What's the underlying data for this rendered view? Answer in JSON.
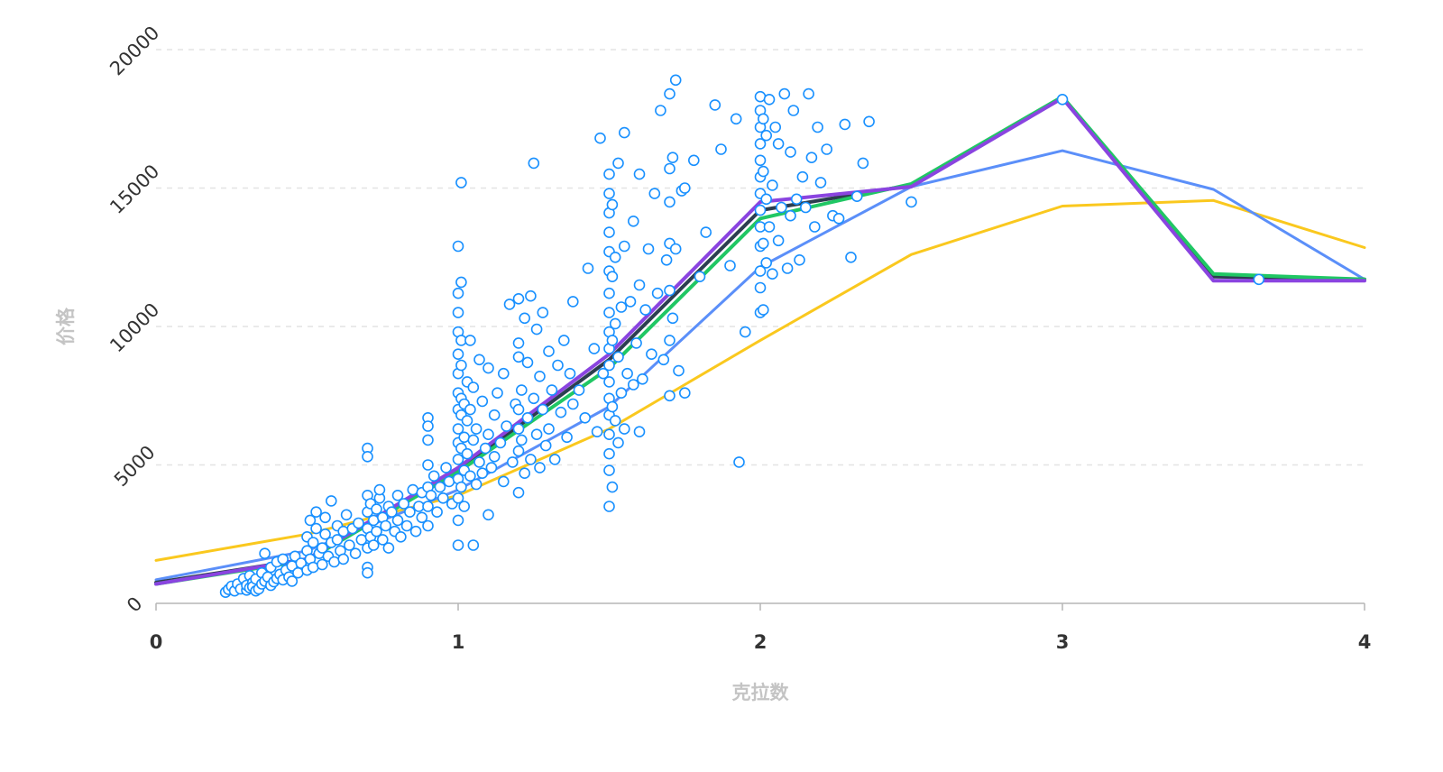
{
  "chart_data": {
    "type": "scatter",
    "title": "",
    "xlabel": "克拉数",
    "ylabel": "价格",
    "xlim": [
      0,
      4
    ],
    "ylim": [
      0,
      20000
    ],
    "x_ticks": [
      "0",
      "1",
      "2",
      "3",
      "4"
    ],
    "y_ticks": [
      "0",
      "5000",
      "10000",
      "15000",
      "20000"
    ],
    "grid": "horizontal dashed",
    "legend": "none",
    "colors": {
      "points": "#1890ff",
      "line_yellow": "#fac81e",
      "line_blue": "#5b8ff9",
      "line_dark": "#2c3e50",
      "line_green": "#20c764",
      "line_purple": "#8a44e0"
    },
    "series": [
      {
        "type": "line",
        "color": "#fac81e",
        "x": [
          0,
          0.5,
          1,
          1.5,
          2,
          2.5,
          3,
          3.5,
          4
        ],
        "y": [
          1550,
          2500,
          3900,
          6300,
          9500,
          12600,
          14350,
          14550,
          12850
        ]
      },
      {
        "type": "line",
        "color": "#5b8ff9",
        "x": [
          0,
          0.5,
          1,
          1.5,
          2,
          2.5,
          3,
          3.5,
          4
        ],
        "y": [
          850,
          1900,
          4100,
          7100,
          12150,
          15050,
          16350,
          14950,
          11700
        ]
      },
      {
        "type": "line",
        "color": "#2c3e50",
        "x": [
          0,
          0.5,
          1,
          1.5,
          2,
          2.5,
          3,
          3.5,
          4
        ],
        "y": [
          750,
          1600,
          4800,
          8800,
          14200,
          15100,
          18250,
          11800,
          11700
        ]
      },
      {
        "type": "line",
        "color": "#20c764",
        "x": [
          0,
          0.5,
          1,
          1.5,
          2,
          2.5,
          3,
          3.5,
          4
        ],
        "y": [
          700,
          1550,
          4750,
          8500,
          13900,
          15150,
          18300,
          11900,
          11700
        ]
      },
      {
        "type": "line",
        "color": "#8a44e0",
        "x": [
          0,
          0.5,
          1,
          1.5,
          2,
          2.5,
          3,
          3.5,
          4
        ],
        "y": [
          700,
          1600,
          4900,
          9000,
          14500,
          15050,
          18250,
          11650,
          11650
        ]
      }
    ],
    "points": [
      [
        0.23,
        400
      ],
      [
        0.24,
        500
      ],
      [
        0.25,
        620
      ],
      [
        0.26,
        450
      ],
      [
        0.27,
        700
      ],
      [
        0.28,
        520
      ],
      [
        0.29,
        900
      ],
      [
        0.3,
        480
      ],
      [
        0.3,
        650
      ],
      [
        0.31,
        560
      ],
      [
        0.31,
        1000
      ],
      [
        0.32,
        750
      ],
      [
        0.32,
        600
      ],
      [
        0.33,
        450
      ],
      [
        0.33,
        880
      ],
      [
        0.34,
        520
      ],
      [
        0.35,
        700
      ],
      [
        0.35,
        1100
      ],
      [
        0.36,
        800
      ],
      [
        0.36,
        1800
      ],
      [
        0.37,
        950
      ],
      [
        0.38,
        650
      ],
      [
        0.38,
        1300
      ],
      [
        0.39,
        780
      ],
      [
        0.4,
        900
      ],
      [
        0.4,
        1500
      ],
      [
        0.41,
        1050
      ],
      [
        0.42,
        850
      ],
      [
        0.42,
        1600
      ],
      [
        0.43,
        1200
      ],
      [
        0.44,
        950
      ],
      [
        0.45,
        1350
      ],
      [
        0.45,
        800
      ],
      [
        0.46,
        1700
      ],
      [
        0.47,
        1100
      ],
      [
        0.48,
        1450
      ],
      [
        0.5,
        1200
      ],
      [
        0.5,
        1900
      ],
      [
        0.5,
        2400
      ],
      [
        0.51,
        3000
      ],
      [
        0.51,
        1600
      ],
      [
        0.52,
        2200
      ],
      [
        0.52,
        1300
      ],
      [
        0.53,
        2700
      ],
      [
        0.53,
        3300
      ],
      [
        0.54,
        1800
      ],
      [
        0.55,
        2000
      ],
      [
        0.55,
        1400
      ],
      [
        0.56,
        2500
      ],
      [
        0.56,
        3100
      ],
      [
        0.57,
        1700
      ],
      [
        0.58,
        2200
      ],
      [
        0.58,
        3700
      ],
      [
        0.59,
        1500
      ],
      [
        0.6,
        2300
      ],
      [
        0.6,
        2800
      ],
      [
        0.61,
        1900
      ],
      [
        0.62,
        2600
      ],
      [
        0.62,
        1600
      ],
      [
        0.63,
        3200
      ],
      [
        0.64,
        2100
      ],
      [
        0.65,
        2700
      ],
      [
        0.66,
        1800
      ],
      [
        0.67,
        2900
      ],
      [
        0.68,
        2300
      ],
      [
        0.7,
        2000
      ],
      [
        0.7,
        2700
      ],
      [
        0.7,
        3300
      ],
      [
        0.7,
        3900
      ],
      [
        0.7,
        1300
      ],
      [
        0.7,
        1100
      ],
      [
        0.7,
        5600
      ],
      [
        0.7,
        5300
      ],
      [
        0.71,
        2400
      ],
      [
        0.71,
        3600
      ],
      [
        0.72,
        3000
      ],
      [
        0.72,
        2100
      ],
      [
        0.73,
        3400
      ],
      [
        0.73,
        2600
      ],
      [
        0.74,
        3800
      ],
      [
        0.74,
        4100
      ],
      [
        0.75,
        2300
      ],
      [
        0.75,
        3100
      ],
      [
        0.76,
        2800
      ],
      [
        0.77,
        3500
      ],
      [
        0.77,
        2000
      ],
      [
        0.78,
        3300
      ],
      [
        0.79,
        2600
      ],
      [
        0.8,
        3000
      ],
      [
        0.8,
        3900
      ],
      [
        0.81,
        2400
      ],
      [
        0.82,
        3600
      ],
      [
        0.83,
        2800
      ],
      [
        0.84,
        3300
      ],
      [
        0.85,
        4100
      ],
      [
        0.86,
        2600
      ],
      [
        0.87,
        3500
      ],
      [
        0.88,
        3100
      ],
      [
        0.88,
        4000
      ],
      [
        0.9,
        2800
      ],
      [
        0.9,
        3500
      ],
      [
        0.9,
        4200
      ],
      [
        0.9,
        5000
      ],
      [
        0.9,
        5900
      ],
      [
        0.9,
        6700
      ],
      [
        0.9,
        6400
      ],
      [
        0.91,
        3900
      ],
      [
        0.92,
        4600
      ],
      [
        0.93,
        3300
      ],
      [
        0.94,
        4200
      ],
      [
        0.95,
        3800
      ],
      [
        0.96,
        4900
      ],
      [
        0.97,
        4400
      ],
      [
        0.98,
        3600
      ],
      [
        1,
        2100
      ],
      [
        1,
        3000
      ],
      [
        1,
        3800
      ],
      [
        1,
        4500
      ],
      [
        1,
        5200
      ],
      [
        1,
        5800
      ],
      [
        1,
        6300
      ],
      [
        1,
        7000
      ],
      [
        1,
        7600
      ],
      [
        1,
        8300
      ],
      [
        1,
        9000
      ],
      [
        1,
        9800
      ],
      [
        1,
        10500
      ],
      [
        1,
        11200
      ],
      [
        1,
        12900
      ],
      [
        1.01,
        4200
      ],
      [
        1.01,
        5600
      ],
      [
        1.01,
        6800
      ],
      [
        1.01,
        7400
      ],
      [
        1.01,
        8600
      ],
      [
        1.01,
        9500
      ],
      [
        1.01,
        11600
      ],
      [
        1.01,
        15200
      ],
      [
        1.02,
        3500
      ],
      [
        1.02,
        4800
      ],
      [
        1.02,
        6000
      ],
      [
        1.02,
        7200
      ],
      [
        1.03,
        5400
      ],
      [
        1.03,
        6600
      ],
      [
        1.03,
        8000
      ],
      [
        1.04,
        4600
      ],
      [
        1.04,
        7000
      ],
      [
        1.04,
        9500
      ],
      [
        1.05,
        2100
      ],
      [
        1.05,
        5900
      ],
      [
        1.05,
        7800
      ],
      [
        1.06,
        4300
      ],
      [
        1.06,
        6300
      ],
      [
        1.07,
        5100
      ],
      [
        1.07,
        8800
      ],
      [
        1.08,
        4700
      ],
      [
        1.08,
        7300
      ],
      [
        1.09,
        5600
      ],
      [
        1.1,
        3200
      ],
      [
        1.1,
        6100
      ],
      [
        1.1,
        8500
      ],
      [
        1.11,
        4900
      ],
      [
        1.12,
        6800
      ],
      [
        1.12,
        5300
      ],
      [
        1.13,
        7600
      ],
      [
        1.14,
        5800
      ],
      [
        1.15,
        4400
      ],
      [
        1.15,
        8300
      ],
      [
        1.16,
        6400
      ],
      [
        1.17,
        10800
      ],
      [
        1.18,
        5100
      ],
      [
        1.19,
        7200
      ],
      [
        1.2,
        4000
      ],
      [
        1.2,
        5500
      ],
      [
        1.2,
        6300
      ],
      [
        1.2,
        7000
      ],
      [
        1.2,
        8900
      ],
      [
        1.2,
        9400
      ],
      [
        1.2,
        11000
      ],
      [
        1.21,
        5900
      ],
      [
        1.21,
        7700
      ],
      [
        1.22,
        4700
      ],
      [
        1.22,
        10300
      ],
      [
        1.23,
        6700
      ],
      [
        1.23,
        8700
      ],
      [
        1.24,
        5200
      ],
      [
        1.24,
        11100
      ],
      [
        1.25,
        7400
      ],
      [
        1.25,
        15900
      ],
      [
        1.26,
        6100
      ],
      [
        1.26,
        9900
      ],
      [
        1.27,
        4900
      ],
      [
        1.27,
        8200
      ],
      [
        1.28,
        7000
      ],
      [
        1.28,
        10500
      ],
      [
        1.29,
        5700
      ],
      [
        1.3,
        6300
      ],
      [
        1.3,
        9100
      ],
      [
        1.31,
        7700
      ],
      [
        1.32,
        5200
      ],
      [
        1.33,
        8600
      ],
      [
        1.34,
        6900
      ],
      [
        1.35,
        9500
      ],
      [
        1.36,
        6000
      ],
      [
        1.37,
        8300
      ],
      [
        1.38,
        7200
      ],
      [
        1.38,
        10900
      ],
      [
        1.4,
        7700
      ],
      [
        1.42,
        6700
      ],
      [
        1.43,
        12100
      ],
      [
        1.45,
        9200
      ],
      [
        1.46,
        6200
      ],
      [
        1.47,
        16800
      ],
      [
        1.48,
        8300
      ],
      [
        1.5,
        3500
      ],
      [
        1.5,
        4800
      ],
      [
        1.5,
        5400
      ],
      [
        1.5,
        6100
      ],
      [
        1.5,
        6800
      ],
      [
        1.5,
        7400
      ],
      [
        1.5,
        8000
      ],
      [
        1.5,
        8600
      ],
      [
        1.5,
        9200
      ],
      [
        1.5,
        9800
      ],
      [
        1.5,
        10500
      ],
      [
        1.5,
        11200
      ],
      [
        1.5,
        12000
      ],
      [
        1.5,
        12700
      ],
      [
        1.5,
        13400
      ],
      [
        1.5,
        14100
      ],
      [
        1.5,
        14800
      ],
      [
        1.5,
        15500
      ],
      [
        1.51,
        4200
      ],
      [
        1.51,
        7100
      ],
      [
        1.51,
        9500
      ],
      [
        1.51,
        11800
      ],
      [
        1.51,
        14400
      ],
      [
        1.52,
        6600
      ],
      [
        1.52,
        10100
      ],
      [
        1.52,
        12500
      ],
      [
        1.53,
        5800
      ],
      [
        1.53,
        8900
      ],
      [
        1.53,
        15900
      ],
      [
        1.54,
        7600
      ],
      [
        1.54,
        10700
      ],
      [
        1.55,
        6300
      ],
      [
        1.55,
        12900
      ],
      [
        1.55,
        17000
      ],
      [
        1.56,
        8300
      ],
      [
        1.57,
        10900
      ],
      [
        1.58,
        7900
      ],
      [
        1.58,
        13800
      ],
      [
        1.59,
        9400
      ],
      [
        1.6,
        6200
      ],
      [
        1.6,
        11500
      ],
      [
        1.6,
        15500
      ],
      [
        1.61,
        8100
      ],
      [
        1.62,
        10600
      ],
      [
        1.63,
        12800
      ],
      [
        1.64,
        9000
      ],
      [
        1.65,
        14800
      ],
      [
        1.66,
        11200
      ],
      [
        1.67,
        17800
      ],
      [
        1.68,
        8800
      ],
      [
        1.69,
        12400
      ],
      [
        1.7,
        7500
      ],
      [
        1.7,
        9500
      ],
      [
        1.7,
        11300
      ],
      [
        1.7,
        13000
      ],
      [
        1.7,
        14500
      ],
      [
        1.7,
        15700
      ],
      [
        1.7,
        18400
      ],
      [
        1.71,
        10300
      ],
      [
        1.71,
        16100
      ],
      [
        1.72,
        12800
      ],
      [
        1.72,
        18900
      ],
      [
        1.73,
        8400
      ],
      [
        1.74,
        14900
      ],
      [
        1.75,
        7600
      ],
      [
        1.75,
        15000
      ],
      [
        1.78,
        16000
      ],
      [
        1.8,
        11800
      ],
      [
        1.82,
        13400
      ],
      [
        1.85,
        18000
      ],
      [
        1.87,
        16400
      ],
      [
        1.9,
        12200
      ],
      [
        1.92,
        17500
      ],
      [
        1.93,
        5100
      ],
      [
        1.95,
        9800
      ],
      [
        2,
        10500
      ],
      [
        2,
        11400
      ],
      [
        2,
        12000
      ],
      [
        2,
        12900
      ],
      [
        2,
        13600
      ],
      [
        2,
        14200
      ],
      [
        2,
        14800
      ],
      [
        2,
        15400
      ],
      [
        2,
        16000
      ],
      [
        2,
        16600
      ],
      [
        2,
        17200
      ],
      [
        2,
        17800
      ],
      [
        2,
        18300
      ],
      [
        2.01,
        10600
      ],
      [
        2.01,
        13000
      ],
      [
        2.01,
        15600
      ],
      [
        2.01,
        17500
      ],
      [
        2.02,
        12300
      ],
      [
        2.02,
        14600
      ],
      [
        2.02,
        16900
      ],
      [
        2.03,
        13600
      ],
      [
        2.03,
        18200
      ],
      [
        2.04,
        11900
      ],
      [
        2.04,
        15100
      ],
      [
        2.05,
        17200
      ],
      [
        2.06,
        13100
      ],
      [
        2.06,
        16600
      ],
      [
        2.07,
        14300
      ],
      [
        2.08,
        18400
      ],
      [
        2.09,
        12100
      ],
      [
        2.1,
        14000
      ],
      [
        2.1,
        16300
      ],
      [
        2.11,
        17800
      ],
      [
        2.12,
        14600
      ],
      [
        2.13,
        12400
      ],
      [
        2.14,
        15400
      ],
      [
        2.15,
        14300
      ],
      [
        2.16,
        18400
      ],
      [
        2.17,
        16100
      ],
      [
        2.18,
        13600
      ],
      [
        2.19,
        17200
      ],
      [
        2.2,
        15200
      ],
      [
        2.22,
        16400
      ],
      [
        2.24,
        14000
      ],
      [
        2.26,
        13900
      ],
      [
        2.28,
        17300
      ],
      [
        2.3,
        12500
      ],
      [
        2.32,
        14700
      ],
      [
        2.34,
        15900
      ],
      [
        2.36,
        17400
      ],
      [
        2.5,
        14500
      ],
      [
        3,
        18200
      ],
      [
        3.65,
        11700
      ]
    ]
  }
}
